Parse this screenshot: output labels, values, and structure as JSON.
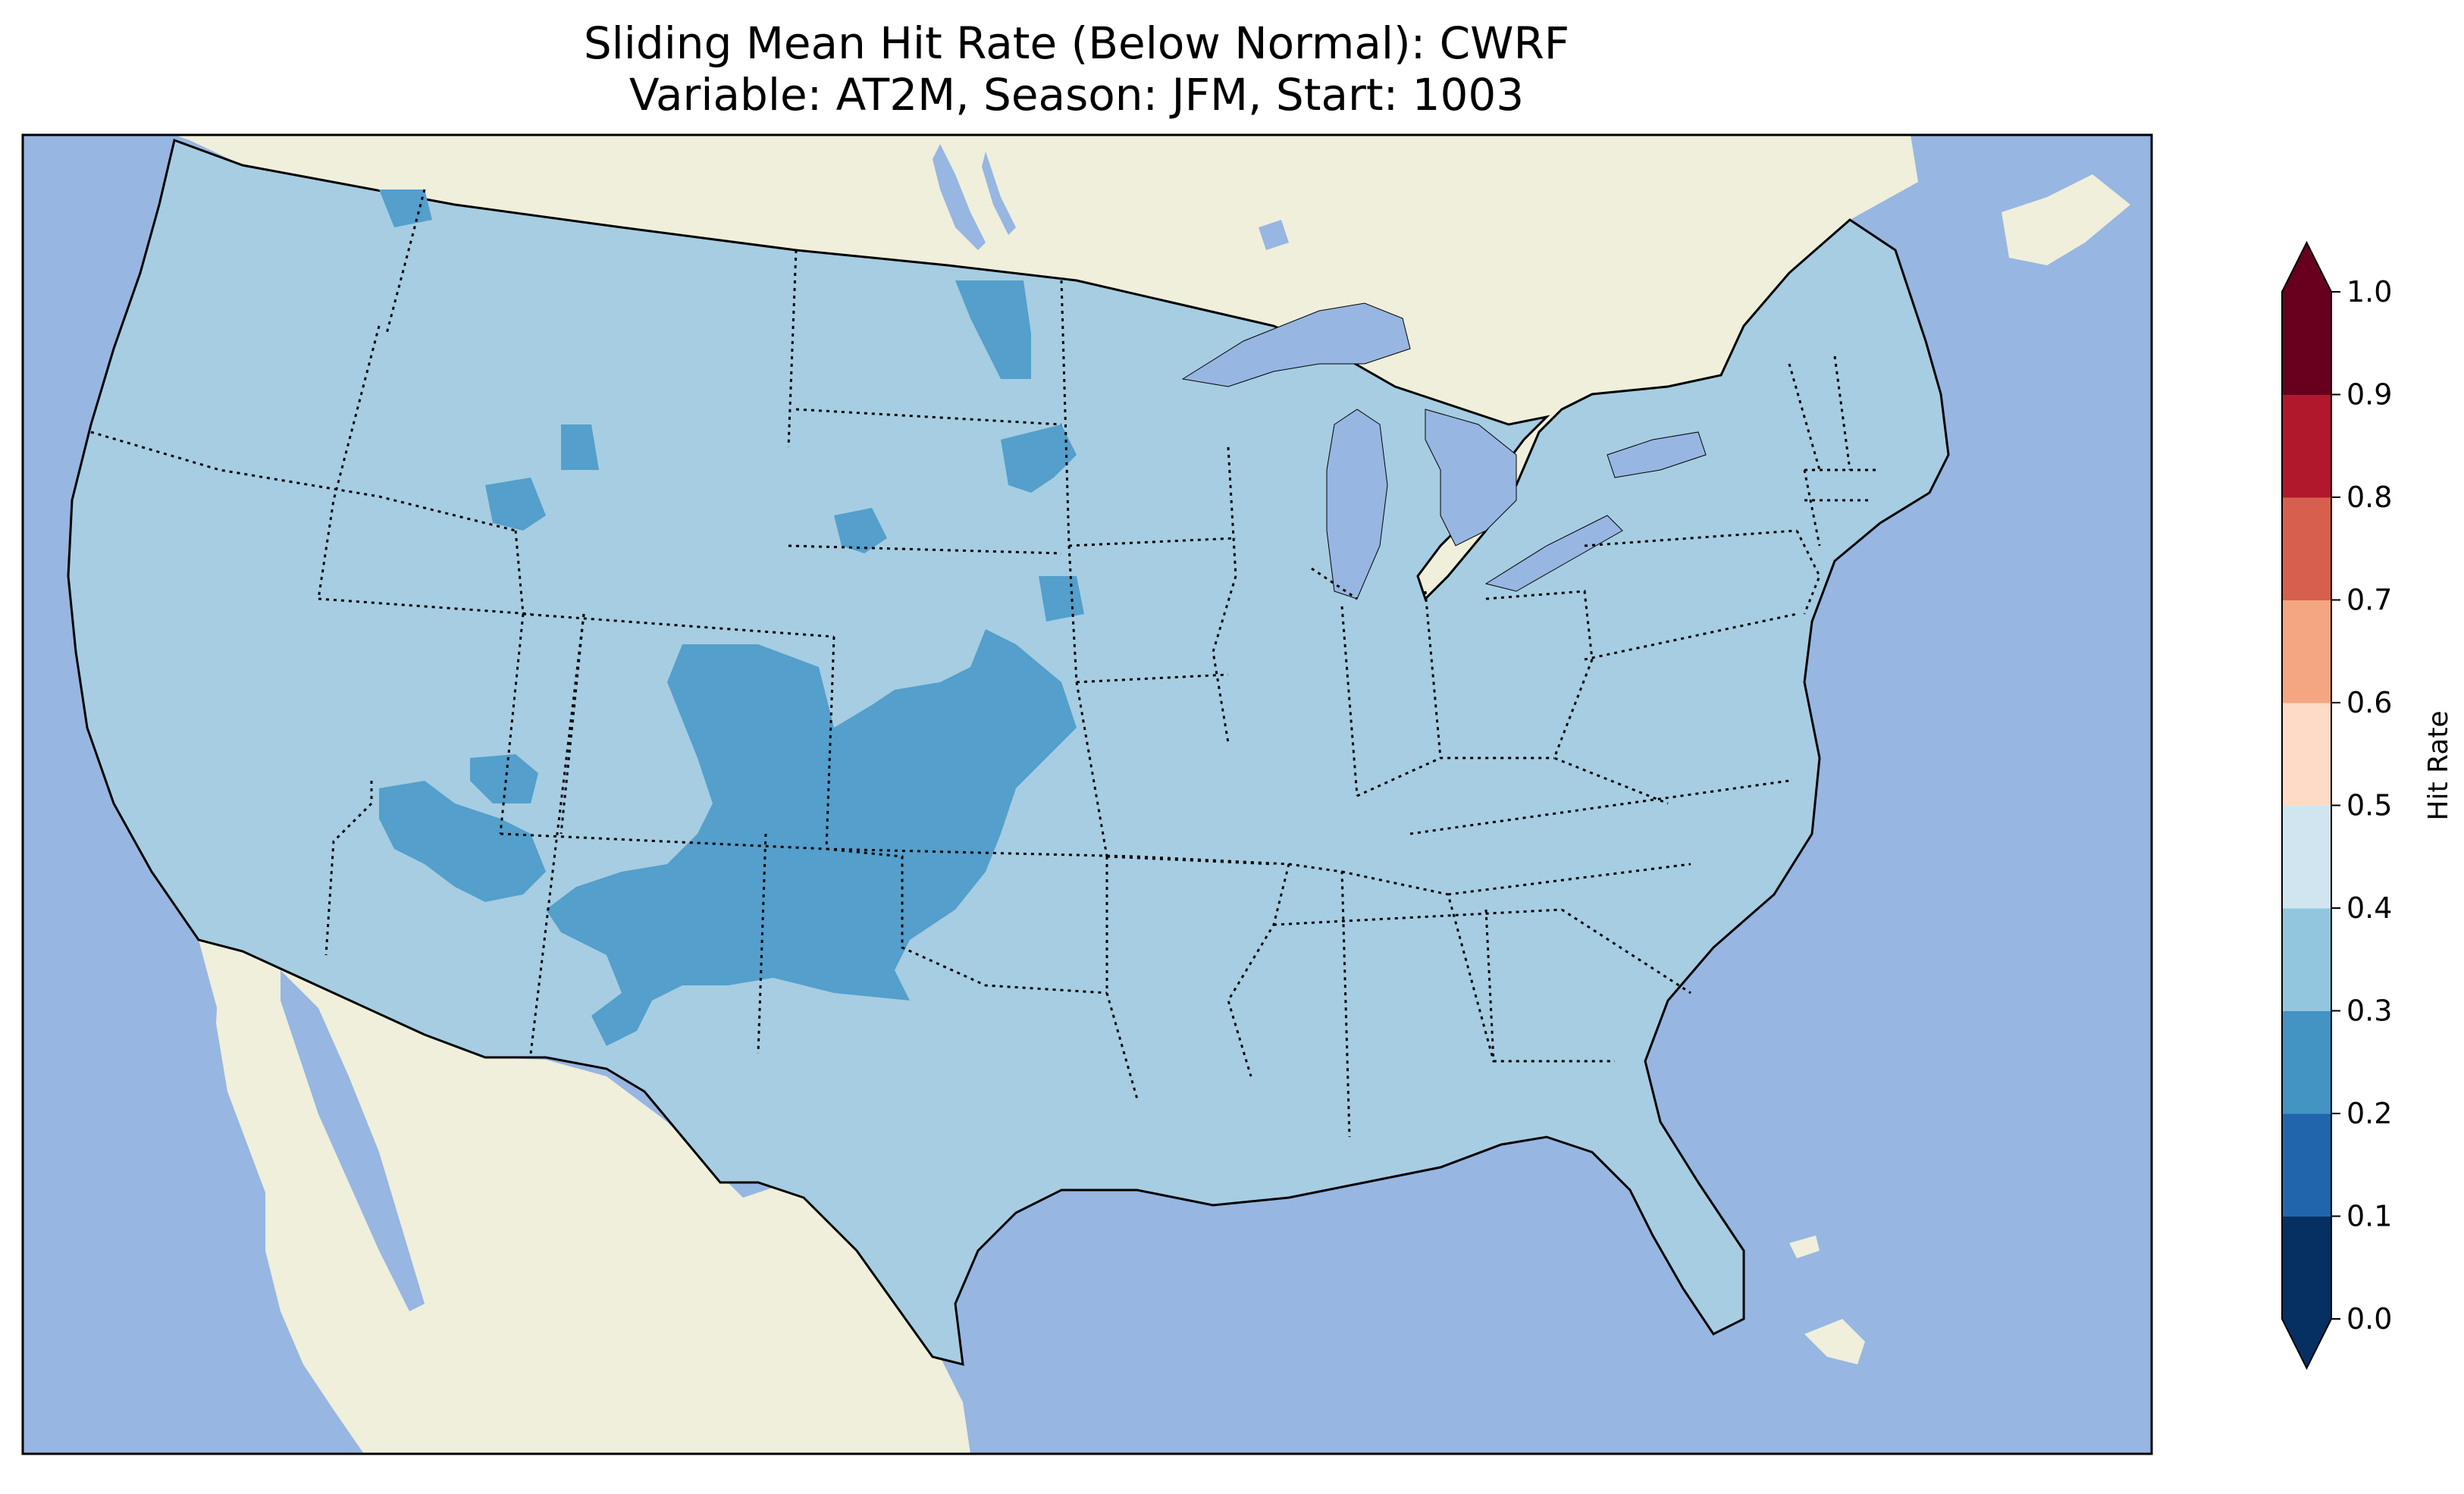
{
  "title": {
    "line1": "Sliding Mean Hit Rate (Below Normal): CWRF",
    "line2": "Variable: AT2M, Season: JFM, Start: 1003"
  },
  "map": {
    "region": "CONUS",
    "ocean_color": "#97b6e1",
    "land_color": "#efefdb",
    "coastline_color": "#000000",
    "border_style": "dotted"
  },
  "colorbar": {
    "label": "Hit Rate",
    "ticks": [
      "0.0",
      "0.1",
      "0.2",
      "0.3",
      "0.4",
      "0.5",
      "0.6",
      "0.7",
      "0.8",
      "0.9",
      "1.0"
    ],
    "colors": [
      "#053061",
      "#2166ac",
      "#4393c3",
      "#92c5de",
      "#d1e5f0",
      "#fddbc7",
      "#f4a582",
      "#d6604d",
      "#b2182b",
      "#67001f"
    ],
    "extend": "both",
    "range": [
      0.0,
      1.0
    ]
  },
  "field": {
    "dominant_bin": "0.3-0.4",
    "dominant_color": "#a6cde2",
    "low_bin": "0.2-0.3",
    "low_color": "#549fcb"
  }
}
